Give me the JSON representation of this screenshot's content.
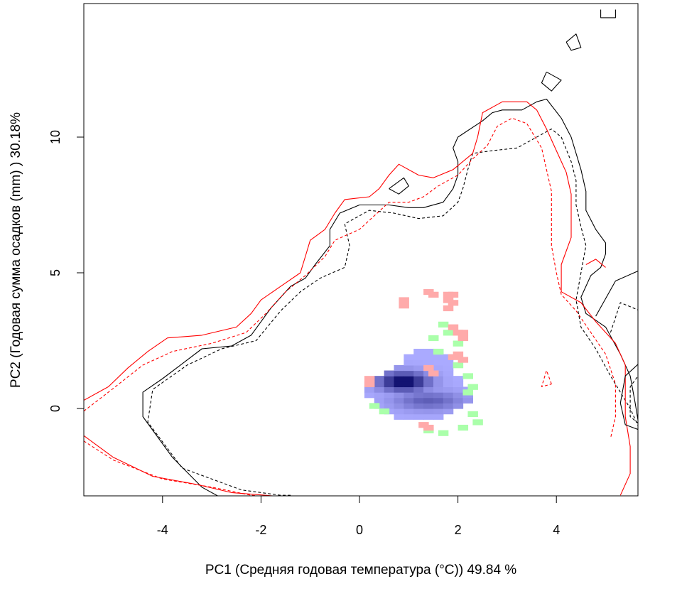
{
  "chart_data": {
    "type": "heatmap",
    "title": "",
    "xlabel": "PC1 (Средняя годовая температура (°C)) 49.84 %",
    "ylabel": "PC2 (Годовая сумма осадков  (mm) ) 30.18%",
    "xlim": [
      -5.6,
      5.7
    ],
    "ylim": [
      -3.2,
      14.7
    ],
    "x_ticks": [
      -4,
      -2,
      0,
      2,
      4
    ],
    "y_ticks": [
      0,
      5,
      10
    ],
    "x_tick_labels": [
      "-4",
      "-2",
      "0",
      "2",
      "4"
    ],
    "y_tick_labels": [
      "0",
      "5",
      "10"
    ],
    "grid": false,
    "colors": {
      "black_contour": "#000000",
      "red_contour": "#ff0000",
      "pink_cells": "#ffaaaa",
      "green_cells": "#aaffaa",
      "blue_low": "#aaaaff",
      "blue_high": "#000060"
    },
    "contours": [
      {
        "color": "#000000",
        "dash": "solid",
        "points": [
          [
            -2.8,
            -3.3
          ],
          [
            -3.2,
            -2.9
          ],
          [
            -3.8,
            -1.8
          ],
          [
            -4.4,
            -0.3
          ],
          [
            -4.4,
            0.6
          ],
          [
            -4.0,
            1.1
          ],
          [
            -3.2,
            2.2
          ],
          [
            -2.6,
            2.3
          ],
          [
            -2.2,
            2.7
          ],
          [
            -1.8,
            3.7
          ],
          [
            -1.4,
            4.5
          ],
          [
            -1.1,
            4.8
          ],
          [
            -0.9,
            5.3
          ],
          [
            -0.6,
            6.0
          ],
          [
            -0.6,
            6.6
          ],
          [
            -0.4,
            7.2
          ],
          [
            0.0,
            7.5
          ],
          [
            0.3,
            7.5
          ],
          [
            0.6,
            7.5
          ],
          [
            1.0,
            7.4
          ],
          [
            1.3,
            7.4
          ],
          [
            1.7,
            7.6
          ],
          [
            1.9,
            8.1
          ],
          [
            2.0,
            8.6
          ],
          [
            2.0,
            9.1
          ],
          [
            1.9,
            9.6
          ],
          [
            2.0,
            10.0
          ],
          [
            2.5,
            10.6
          ],
          [
            2.7,
            10.9
          ],
          [
            2.9,
            11.0
          ],
          [
            3.3,
            11.0
          ],
          [
            3.6,
            11.3
          ],
          [
            3.8,
            11.4
          ],
          [
            4.1,
            10.7
          ],
          [
            4.3,
            10.0
          ],
          [
            4.4,
            9.4
          ],
          [
            4.5,
            8.8
          ],
          [
            4.6,
            8.0
          ],
          [
            4.6,
            7.3
          ],
          [
            4.8,
            6.6
          ],
          [
            5.0,
            6.1
          ],
          [
            5.0,
            5.7
          ],
          [
            4.9,
            5.2
          ],
          [
            4.7,
            4.9
          ],
          [
            4.5,
            4.1
          ],
          [
            4.6,
            3.5
          ],
          [
            5.0,
            3.0
          ],
          [
            5.3,
            2.0
          ],
          [
            5.5,
            1.2
          ],
          [
            5.6,
            0.2
          ],
          [
            5.7,
            -0.9
          ]
        ]
      },
      {
        "color": "#000000",
        "dash": "dashed",
        "points": [
          [
            -1.4,
            -3.2
          ],
          [
            -1.6,
            -3.2
          ],
          [
            -2.4,
            -3.0
          ],
          [
            -3.6,
            -2.2
          ],
          [
            -4.3,
            -0.5
          ],
          [
            -4.2,
            0.7
          ],
          [
            -3.5,
            1.6
          ],
          [
            -2.8,
            2.2
          ],
          [
            -2.1,
            2.5
          ],
          [
            -1.6,
            3.6
          ],
          [
            -1.2,
            4.3
          ],
          [
            -0.8,
            4.8
          ],
          [
            -0.3,
            5.2
          ],
          [
            -0.2,
            6.0
          ],
          [
            -0.3,
            6.8
          ],
          [
            0.2,
            7.3
          ],
          [
            0.7,
            7.2
          ],
          [
            1.2,
            7.0
          ],
          [
            1.7,
            7.1
          ],
          [
            2.0,
            7.6
          ],
          [
            2.1,
            8.1
          ],
          [
            2.2,
            8.8
          ],
          [
            2.3,
            9.4
          ],
          [
            2.7,
            9.5
          ],
          [
            3.2,
            9.6
          ],
          [
            3.6,
            10.0
          ],
          [
            3.9,
            10.3
          ],
          [
            4.1,
            10.0
          ],
          [
            4.3,
            9.1
          ],
          [
            4.4,
            8.4
          ],
          [
            4.4,
            7.5
          ],
          [
            4.5,
            6.7
          ],
          [
            4.6,
            6.0
          ],
          [
            4.5,
            5.0
          ],
          [
            4.4,
            4.0
          ],
          [
            4.5,
            3.0
          ],
          [
            4.8,
            2.2
          ],
          [
            5.1,
            1.2
          ],
          [
            5.5,
            0.0
          ],
          [
            5.7,
            -0.8
          ]
        ]
      },
      {
        "color": "#ff0000",
        "dash": "solid",
        "points": [
          [
            -5.6,
            0.3
          ],
          [
            -5.1,
            0.8
          ],
          [
            -4.7,
            1.5
          ],
          [
            -4.3,
            2.1
          ],
          [
            -3.9,
            2.6
          ],
          [
            -3.2,
            2.7
          ],
          [
            -2.5,
            3.0
          ],
          [
            -2.2,
            3.5
          ],
          [
            -2.0,
            4.0
          ],
          [
            -1.6,
            4.5
          ],
          [
            -1.2,
            5.0
          ],
          [
            -1.1,
            5.6
          ],
          [
            -1.0,
            6.2
          ],
          [
            -0.7,
            6.6
          ],
          [
            -0.5,
            7.2
          ],
          [
            -0.3,
            7.7
          ],
          [
            0.2,
            7.8
          ],
          [
            0.4,
            8.1
          ],
          [
            0.6,
            8.6
          ],
          [
            0.8,
            9.0
          ],
          [
            1.2,
            8.6
          ],
          [
            1.5,
            8.5
          ],
          [
            1.9,
            8.8
          ],
          [
            2.3,
            9.4
          ],
          [
            2.4,
            10.0
          ],
          [
            2.5,
            10.9
          ],
          [
            2.9,
            11.3
          ],
          [
            3.4,
            11.3
          ],
          [
            3.6,
            11.0
          ],
          [
            3.8,
            10.3
          ],
          [
            4.0,
            9.5
          ],
          [
            4.2,
            8.7
          ],
          [
            4.3,
            7.9
          ],
          [
            4.3,
            7.2
          ],
          [
            4.3,
            6.3
          ],
          [
            4.1,
            5.3
          ],
          [
            4.1,
            4.3
          ],
          [
            4.5,
            3.9
          ],
          [
            4.8,
            3.2
          ],
          [
            5.2,
            2.4
          ],
          [
            5.4,
            1.6
          ],
          [
            5.4,
            0.7
          ],
          [
            5.4,
            -0.3
          ],
          [
            5.5,
            -1.4
          ],
          [
            5.5,
            -2.4
          ],
          [
            5.3,
            -3.2
          ]
        ]
      },
      {
        "color": "#ff0000",
        "dash": "dashed",
        "points": [
          [
            -5.6,
            -0.1
          ],
          [
            -5.1,
            0.6
          ],
          [
            -4.4,
            1.6
          ],
          [
            -3.8,
            2.1
          ],
          [
            -3.0,
            2.4
          ],
          [
            -2.3,
            2.8
          ],
          [
            -1.9,
            3.5
          ],
          [
            -1.5,
            4.3
          ],
          [
            -1.1,
            4.9
          ],
          [
            -0.7,
            5.6
          ],
          [
            -0.5,
            6.2
          ],
          [
            0.0,
            6.6
          ],
          [
            0.3,
            7.1
          ],
          [
            0.6,
            7.6
          ],
          [
            1.0,
            7.6
          ],
          [
            1.3,
            7.8
          ],
          [
            1.6,
            8.2
          ],
          [
            2.0,
            8.6
          ],
          [
            2.3,
            9.2
          ],
          [
            2.6,
            9.7
          ],
          [
            2.8,
            10.4
          ],
          [
            3.1,
            10.7
          ],
          [
            3.4,
            10.5
          ],
          [
            3.7,
            9.6
          ],
          [
            3.8,
            8.8
          ],
          [
            3.9,
            8.0
          ],
          [
            3.9,
            7.0
          ],
          [
            3.9,
            6.0
          ],
          [
            4.0,
            5.0
          ],
          [
            4.1,
            4.2
          ],
          [
            4.4,
            3.6
          ],
          [
            4.7,
            2.8
          ],
          [
            5.0,
            2.0
          ],
          [
            5.2,
            0.9
          ],
          [
            5.2,
            -0.3
          ],
          [
            5.1,
            -1.1
          ]
        ]
      },
      {
        "color": "#ff0000",
        "dash": "solid",
        "points": [
          [
            -5.6,
            -1.0
          ],
          [
            -5.0,
            -1.8
          ],
          [
            -4.2,
            -2.5
          ],
          [
            -3.3,
            -2.8
          ],
          [
            -2.6,
            -3.1
          ],
          [
            -1.9,
            -3.2
          ],
          [
            -1.3,
            -3.3
          ]
        ]
      },
      {
        "color": "#ff0000",
        "dash": "dashed",
        "points": [
          [
            -5.6,
            -1.2
          ],
          [
            -5.0,
            -1.9
          ],
          [
            -4.0,
            -2.6
          ],
          [
            -3.0,
            -2.9
          ],
          [
            -2.2,
            -3.2
          ],
          [
            -1.6,
            -3.3
          ]
        ]
      },
      {
        "color": "#000000",
        "dash": "solid",
        "points": [
          [
            5.7,
            1.7
          ],
          [
            5.4,
            1.2
          ],
          [
            5.3,
            0.2
          ],
          [
            5.4,
            -0.6
          ],
          [
            5.7,
            -0.8
          ]
        ]
      },
      {
        "color": "#000000",
        "dash": "dashed",
        "points": [
          [
            5.7,
            1.3
          ],
          [
            5.5,
            0.8
          ],
          [
            5.5,
            -0.3
          ],
          [
            5.7,
            -0.6
          ]
        ]
      },
      {
        "color": "#000000",
        "dash": "solid",
        "points": [
          [
            4.8,
            3.4
          ],
          [
            5.2,
            4.7
          ],
          [
            5.7,
            5.1
          ]
        ]
      },
      {
        "color": "#000000",
        "dash": "dashed",
        "points": [
          [
            5.1,
            2.8
          ],
          [
            5.3,
            3.9
          ],
          [
            5.7,
            3.6
          ]
        ]
      },
      {
        "color": "#ff0000",
        "dash": "solid",
        "points": [
          [
            4.6,
            5.3
          ],
          [
            4.8,
            5.5
          ],
          [
            5.0,
            5.2
          ]
        ]
      },
      {
        "color": "#ff0000",
        "dash": "dashed",
        "points": [
          [
            3.9,
            0.9
          ],
          [
            3.8,
            1.4
          ],
          [
            3.7,
            0.8
          ],
          [
            3.9,
            0.9
          ]
        ]
      },
      {
        "color": "#000000",
        "dash": "solid",
        "points": [
          [
            0.6,
            8.1
          ],
          [
            0.9,
            8.5
          ],
          [
            1.0,
            8.2
          ],
          [
            0.8,
            7.9
          ],
          [
            0.6,
            8.1
          ]
        ]
      },
      {
        "color": "#000000",
        "dash": "solid",
        "points": [
          [
            3.8,
            12.4
          ],
          [
            4.1,
            12.1
          ],
          [
            3.9,
            11.7
          ],
          [
            3.7,
            12.0
          ],
          [
            3.8,
            12.4
          ]
        ]
      },
      {
        "color": "#000000",
        "dash": "solid",
        "points": [
          [
            4.2,
            13.5
          ],
          [
            4.4,
            13.8
          ],
          [
            4.5,
            13.3
          ],
          [
            4.3,
            13.2
          ],
          [
            4.2,
            13.5
          ]
        ]
      },
      {
        "color": "#000000",
        "dash": "solid",
        "points": [
          [
            4.9,
            14.7
          ],
          [
            4.9,
            14.4
          ],
          [
            5.2,
            14.4
          ],
          [
            5.2,
            14.7
          ]
        ]
      }
    ],
    "density_peak": [
      0.9,
      1.0
    ],
    "density_ridge": [
      1.4,
      0.3
    ],
    "blue_cells_region": {
      "x": [
        0.2,
        2.3
      ],
      "y": [
        -0.9,
        2.2
      ]
    },
    "green_cells": [
      [
        1.7,
        3.1
      ],
      [
        1.8,
        2.8
      ],
      [
        1.5,
        2.6
      ],
      [
        2.2,
        1.2
      ],
      [
        2.3,
        0.8
      ],
      [
        2.2,
        0.6
      ],
      [
        2.3,
        -0.2
      ],
      [
        2.4,
        -0.5
      ],
      [
        2.1,
        -0.7
      ],
      [
        1.7,
        -0.9
      ],
      [
        1.4,
        -0.8
      ],
      [
        0.5,
        -0.1
      ],
      [
        0.3,
        0.1
      ],
      [
        2.0,
        2.4
      ],
      [
        2.0,
        1.6
      ],
      [
        1.6,
        2.1
      ]
    ],
    "pink_cells": [
      [
        0.9,
        4.0
      ],
      [
        0.9,
        3.8
      ],
      [
        1.4,
        4.3
      ],
      [
        1.5,
        4.2
      ],
      [
        1.8,
        4.2
      ],
      [
        1.9,
        4.2
      ],
      [
        1.8,
        4.0
      ],
      [
        1.9,
        3.9
      ],
      [
        1.8,
        3.7
      ],
      [
        1.9,
        3.0
      ],
      [
        2.0,
        2.8
      ],
      [
        2.1,
        2.8
      ],
      [
        2.1,
        2.6
      ],
      [
        2.0,
        2.0
      ],
      [
        1.9,
        1.9
      ],
      [
        2.1,
        1.8
      ],
      [
        1.4,
        1.5
      ],
      [
        1.5,
        1.3
      ],
      [
        0.2,
        1.1
      ],
      [
        0.2,
        0.9
      ],
      [
        1.3,
        -0.6
      ],
      [
        1.4,
        -0.7
      ]
    ]
  }
}
